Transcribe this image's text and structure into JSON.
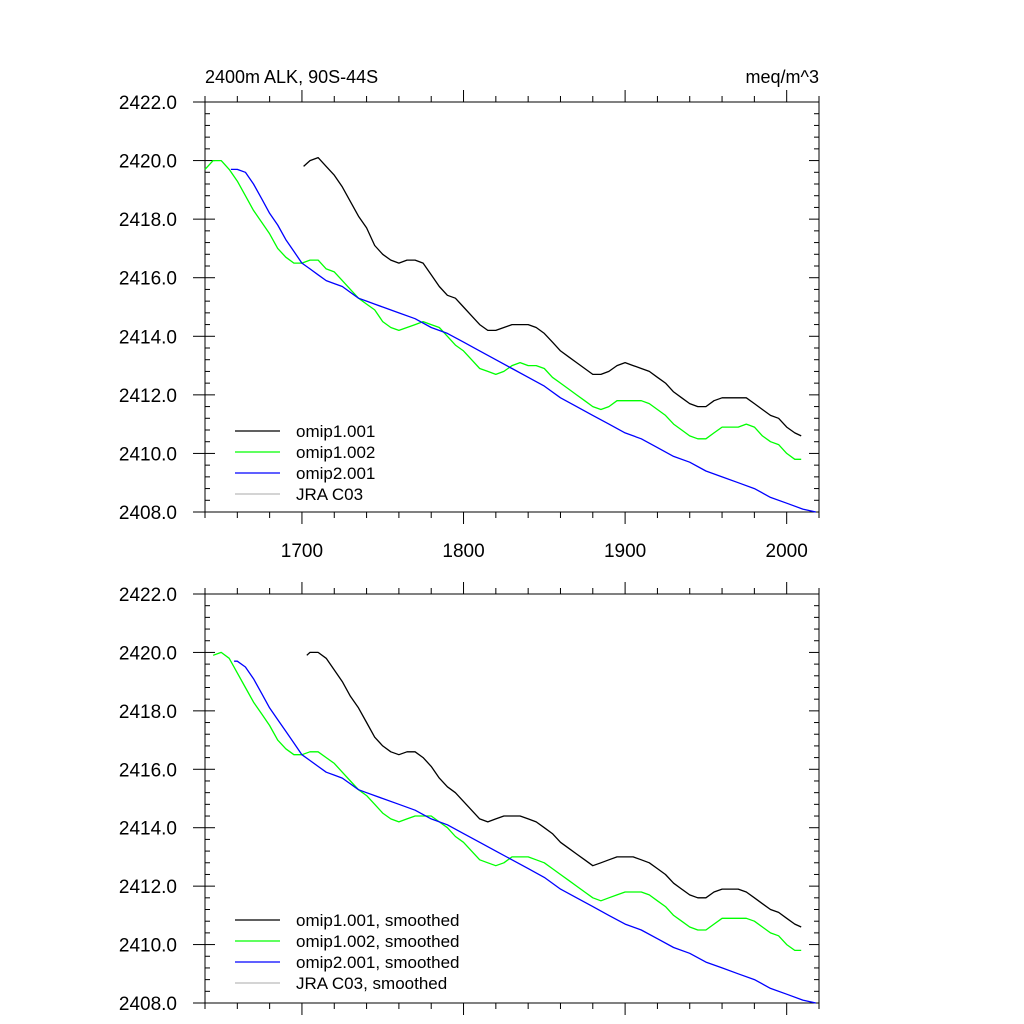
{
  "chart_data": [
    {
      "type": "line",
      "title_left": "2400m ALK, 90S-44S",
      "title_right": "meq/m^3",
      "xlim": [
        1640,
        2020
      ],
      "ylim": [
        2408,
        2422
      ],
      "y_ticks": [
        {
          "value": 2408,
          "label": "2408.0"
        },
        {
          "value": 2410,
          "label": "2410.0"
        },
        {
          "value": 2412,
          "label": "2412.0"
        },
        {
          "value": 2414,
          "label": "2414.0"
        },
        {
          "value": 2416,
          "label": "2416.0"
        },
        {
          "value": 2418,
          "label": "2418.0"
        },
        {
          "value": 2420,
          "label": "2420.0"
        },
        {
          "value": 2422,
          "label": "2422.0"
        }
      ],
      "x_ticks": [
        {
          "value": 1700,
          "label": "1700"
        },
        {
          "value": 1800,
          "label": "1800"
        },
        {
          "value": 1900,
          "label": "1900"
        },
        {
          "value": 2000,
          "label": "2000"
        }
      ],
      "legend_position": "bottom-left",
      "series": [
        {
          "name": "omip1.001",
          "color": "#000000",
          "x": [
            1701,
            1705,
            1710,
            1715,
            1720,
            1725,
            1730,
            1735,
            1740,
            1745,
            1750,
            1755,
            1760,
            1765,
            1770,
            1775,
            1780,
            1785,
            1790,
            1795,
            1800,
            1805,
            1810,
            1815,
            1820,
            1825,
            1830,
            1835,
            1840,
            1845,
            1850,
            1855,
            1860,
            1865,
            1870,
            1875,
            1880,
            1885,
            1890,
            1895,
            1900,
            1905,
            1910,
            1915,
            1920,
            1925,
            1930,
            1935,
            1940,
            1945,
            1950,
            1955,
            1960,
            1965,
            1970,
            1975,
            1980,
            1985,
            1990,
            1995,
            2000,
            2005,
            2009
          ],
          "y": [
            2419.8,
            2420.0,
            2420.1,
            2419.8,
            2419.5,
            2419.1,
            2418.6,
            2418.1,
            2417.7,
            2417.1,
            2416.8,
            2416.6,
            2416.5,
            2416.6,
            2416.6,
            2416.5,
            2416.1,
            2415.7,
            2415.4,
            2415.3,
            2415.0,
            2414.7,
            2414.4,
            2414.2,
            2414.2,
            2414.3,
            2414.4,
            2414.4,
            2414.4,
            2414.3,
            2414.1,
            2413.8,
            2413.5,
            2413.3,
            2413.1,
            2412.9,
            2412.7,
            2412.7,
            2412.8,
            2413.0,
            2413.1,
            2413.0,
            2412.9,
            2412.8,
            2412.6,
            2412.4,
            2412.1,
            2411.9,
            2411.7,
            2411.6,
            2411.6,
            2411.8,
            2411.9,
            2411.9,
            2411.9,
            2411.9,
            2411.7,
            2411.5,
            2411.3,
            2411.2,
            2410.9,
            2410.7,
            2410.6
          ]
        },
        {
          "name": "omip1.002",
          "color": "#00ff00",
          "x": [
            1640,
            1645,
            1650,
            1655,
            1660,
            1665,
            1670,
            1675,
            1680,
            1685,
            1690,
            1695,
            1700,
            1705,
            1710,
            1715,
            1720,
            1725,
            1730,
            1735,
            1740,
            1745,
            1750,
            1755,
            1760,
            1765,
            1770,
            1775,
            1780,
            1785,
            1790,
            1795,
            1800,
            1805,
            1810,
            1815,
            1820,
            1825,
            1830,
            1835,
            1840,
            1845,
            1850,
            1855,
            1860,
            1865,
            1870,
            1875,
            1880,
            1885,
            1890,
            1895,
            1900,
            1905,
            1910,
            1915,
            1920,
            1925,
            1930,
            1935,
            1940,
            1945,
            1950,
            1955,
            1960,
            1965,
            1970,
            1975,
            1980,
            1985,
            1990,
            1995,
            2000,
            2005,
            2009
          ],
          "y": [
            2419.7,
            2420.0,
            2420.0,
            2419.7,
            2419.3,
            2418.8,
            2418.3,
            2417.9,
            2417.5,
            2417.0,
            2416.7,
            2416.5,
            2416.5,
            2416.6,
            2416.6,
            2416.3,
            2416.2,
            2415.9,
            2415.6,
            2415.3,
            2415.1,
            2414.9,
            2414.5,
            2414.3,
            2414.2,
            2414.3,
            2414.4,
            2414.5,
            2414.4,
            2414.3,
            2414.0,
            2413.7,
            2413.5,
            2413.2,
            2412.9,
            2412.8,
            2412.7,
            2412.8,
            2413.0,
            2413.1,
            2413.0,
            2413.0,
            2412.9,
            2412.6,
            2412.4,
            2412.2,
            2412.0,
            2411.8,
            2411.6,
            2411.5,
            2411.6,
            2411.8,
            2411.8,
            2411.8,
            2411.8,
            2411.7,
            2411.5,
            2411.3,
            2411.0,
            2410.8,
            2410.6,
            2410.5,
            2410.5,
            2410.7,
            2410.9,
            2410.9,
            2410.9,
            2411.0,
            2410.9,
            2410.6,
            2410.4,
            2410.3,
            2410.0,
            2409.8,
            2409.8
          ]
        },
        {
          "name": "omip2.001",
          "color": "#0000ff",
          "x": [
            1656,
            1660,
            1665,
            1670,
            1675,
            1680,
            1685,
            1690,
            1695,
            1700,
            1705,
            1710,
            1715,
            1720,
            1725,
            1730,
            1735,
            1740,
            1745,
            1750,
            1760,
            1770,
            1780,
            1790,
            1800,
            1810,
            1820,
            1830,
            1840,
            1850,
            1860,
            1870,
            1880,
            1890,
            1900,
            1910,
            1920,
            1930,
            1940,
            1950,
            1960,
            1970,
            1980,
            1990,
            2000,
            2010,
            2018
          ],
          "y": [
            2419.7,
            2419.7,
            2419.6,
            2419.2,
            2418.7,
            2418.2,
            2417.8,
            2417.3,
            2416.9,
            2416.5,
            2416.3,
            2416.1,
            2415.9,
            2415.8,
            2415.7,
            2415.5,
            2415.3,
            2415.2,
            2415.1,
            2415.0,
            2414.8,
            2414.6,
            2414.3,
            2414.1,
            2413.8,
            2413.5,
            2413.2,
            2412.9,
            2412.6,
            2412.3,
            2411.9,
            2411.6,
            2411.3,
            2411.0,
            2410.7,
            2410.5,
            2410.2,
            2409.9,
            2409.7,
            2409.4,
            2409.2,
            2409.0,
            2408.8,
            2408.5,
            2408.3,
            2408.1,
            2408.0
          ]
        },
        {
          "name": "JRA C03",
          "color": "#bbbbbb",
          "x": [],
          "y": []
        }
      ]
    },
    {
      "type": "line",
      "xlim": [
        1640,
        2020
      ],
      "ylim": [
        2408,
        2422
      ],
      "y_ticks": [
        {
          "value": 2408,
          "label": "2408.0"
        },
        {
          "value": 2410,
          "label": "2410.0"
        },
        {
          "value": 2412,
          "label": "2412.0"
        },
        {
          "value": 2414,
          "label": "2414.0"
        },
        {
          "value": 2416,
          "label": "2416.0"
        },
        {
          "value": 2418,
          "label": "2418.0"
        },
        {
          "value": 2420,
          "label": "2420.0"
        },
        {
          "value": 2422,
          "label": "2422.0"
        }
      ],
      "x_ticks": [
        {
          "value": 1700,
          "label": ""
        },
        {
          "value": 1800,
          "label": ""
        },
        {
          "value": 1900,
          "label": ""
        },
        {
          "value": 2000,
          "label": ""
        }
      ],
      "legend_position": "bottom-left",
      "series": [
        {
          "name": "omip1.001, smoothed",
          "color": "#000000",
          "x": [
            1703,
            1705,
            1710,
            1715,
            1720,
            1725,
            1730,
            1735,
            1740,
            1745,
            1750,
            1755,
            1760,
            1765,
            1770,
            1775,
            1780,
            1785,
            1790,
            1795,
            1800,
            1805,
            1810,
            1815,
            1820,
            1825,
            1830,
            1835,
            1840,
            1845,
            1850,
            1855,
            1860,
            1865,
            1870,
            1875,
            1880,
            1885,
            1890,
            1895,
            1900,
            1905,
            1910,
            1915,
            1920,
            1925,
            1930,
            1935,
            1940,
            1945,
            1950,
            1955,
            1960,
            1965,
            1970,
            1975,
            1980,
            1985,
            1990,
            1995,
            2000,
            2005,
            2009
          ],
          "y": [
            2419.9,
            2420.0,
            2420.0,
            2419.8,
            2419.4,
            2419.0,
            2418.5,
            2418.1,
            2417.6,
            2417.1,
            2416.8,
            2416.6,
            2416.5,
            2416.6,
            2416.6,
            2416.4,
            2416.1,
            2415.7,
            2415.4,
            2415.2,
            2414.9,
            2414.6,
            2414.3,
            2414.2,
            2414.3,
            2414.4,
            2414.4,
            2414.4,
            2414.3,
            2414.2,
            2414.0,
            2413.8,
            2413.5,
            2413.3,
            2413.1,
            2412.9,
            2412.7,
            2412.8,
            2412.9,
            2413.0,
            2413.0,
            2413.0,
            2412.9,
            2412.8,
            2412.6,
            2412.4,
            2412.1,
            2411.9,
            2411.7,
            2411.6,
            2411.6,
            2411.8,
            2411.9,
            2411.9,
            2411.9,
            2411.8,
            2411.6,
            2411.4,
            2411.2,
            2411.1,
            2410.9,
            2410.7,
            2410.6
          ]
        },
        {
          "name": "omip1.002, smoothed",
          "color": "#00ff00",
          "x": [
            1645,
            1650,
            1655,
            1660,
            1665,
            1670,
            1675,
            1680,
            1685,
            1690,
            1695,
            1700,
            1705,
            1710,
            1715,
            1720,
            1725,
            1730,
            1735,
            1740,
            1745,
            1750,
            1755,
            1760,
            1765,
            1770,
            1775,
            1780,
            1785,
            1790,
            1795,
            1800,
            1805,
            1810,
            1815,
            1820,
            1825,
            1830,
            1835,
            1840,
            1845,
            1850,
            1855,
            1860,
            1865,
            1870,
            1875,
            1880,
            1885,
            1890,
            1895,
            1900,
            1905,
            1910,
            1915,
            1920,
            1925,
            1930,
            1935,
            1940,
            1945,
            1950,
            1955,
            1960,
            1965,
            1970,
            1975,
            1980,
            1985,
            1990,
            1995,
            2000,
            2005,
            2009
          ],
          "y": [
            2419.9,
            2420.0,
            2419.8,
            2419.3,
            2418.8,
            2418.3,
            2417.9,
            2417.5,
            2417.0,
            2416.7,
            2416.5,
            2416.5,
            2416.6,
            2416.6,
            2416.4,
            2416.2,
            2415.9,
            2415.6,
            2415.3,
            2415.1,
            2414.8,
            2414.5,
            2414.3,
            2414.2,
            2414.3,
            2414.4,
            2414.4,
            2414.4,
            2414.2,
            2414.0,
            2413.7,
            2413.5,
            2413.2,
            2412.9,
            2412.8,
            2412.7,
            2412.8,
            2413.0,
            2413.0,
            2413.0,
            2412.9,
            2412.8,
            2412.6,
            2412.4,
            2412.2,
            2412.0,
            2411.8,
            2411.6,
            2411.5,
            2411.6,
            2411.7,
            2411.8,
            2411.8,
            2411.8,
            2411.7,
            2411.5,
            2411.3,
            2411.0,
            2410.8,
            2410.6,
            2410.5,
            2410.5,
            2410.7,
            2410.9,
            2410.9,
            2410.9,
            2410.9,
            2410.8,
            2410.6,
            2410.4,
            2410.3,
            2410.0,
            2409.8,
            2409.8
          ]
        },
        {
          "name": "omip2.001, smoothed",
          "color": "#0000ff",
          "x": [
            1658,
            1660,
            1665,
            1670,
            1675,
            1680,
            1685,
            1690,
            1695,
            1700,
            1705,
            1710,
            1715,
            1720,
            1725,
            1730,
            1735,
            1740,
            1745,
            1750,
            1760,
            1770,
            1780,
            1790,
            1800,
            1810,
            1820,
            1830,
            1840,
            1850,
            1860,
            1870,
            1880,
            1890,
            1900,
            1910,
            1920,
            1930,
            1940,
            1950,
            1960,
            1970,
            1980,
            1990,
            2000,
            2010,
            2018
          ],
          "y": [
            2419.7,
            2419.7,
            2419.5,
            2419.1,
            2418.6,
            2418.1,
            2417.7,
            2417.3,
            2416.9,
            2416.5,
            2416.3,
            2416.1,
            2415.9,
            2415.8,
            2415.7,
            2415.5,
            2415.3,
            2415.2,
            2415.1,
            2415.0,
            2414.8,
            2414.6,
            2414.3,
            2414.1,
            2413.8,
            2413.5,
            2413.2,
            2412.9,
            2412.6,
            2412.3,
            2411.9,
            2411.6,
            2411.3,
            2411.0,
            2410.7,
            2410.5,
            2410.2,
            2409.9,
            2409.7,
            2409.4,
            2409.2,
            2409.0,
            2408.8,
            2408.5,
            2408.3,
            2408.1,
            2408.0
          ]
        },
        {
          "name": "JRA C03, smoothed",
          "color": "#bbbbbb",
          "x": [],
          "y": []
        }
      ]
    }
  ]
}
